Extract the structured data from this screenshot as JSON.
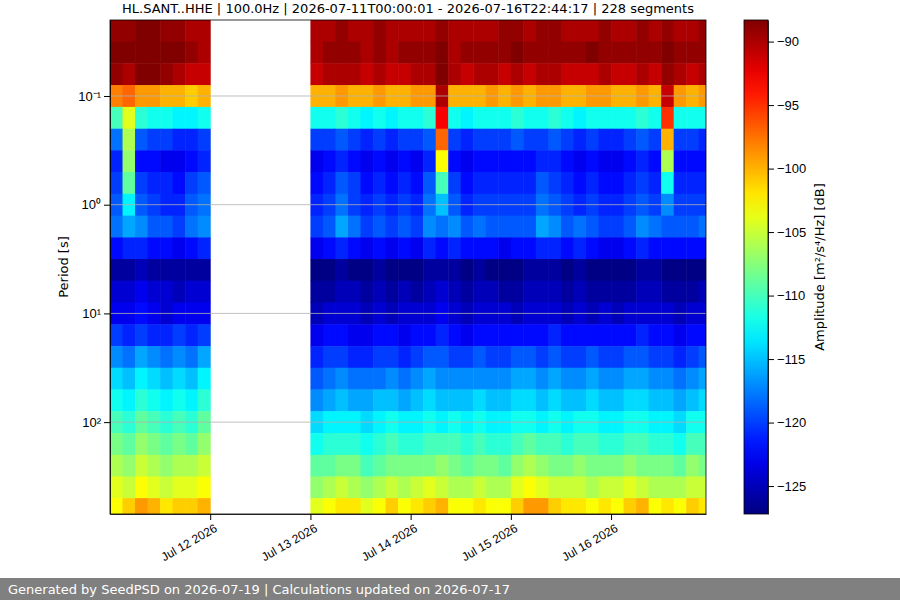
{
  "chart_data": {
    "type": "heatmap",
    "title": "HL.SANT..HHE | 100.0Hz | 2026-07-11T00:00:01 - 2026-07-16T22:44:17 | 228 segments",
    "y_label": "Period [s]",
    "footer": "Generated by SeedPSD on 2026-07-19 | Calculations updated on 2026-07-17",
    "log": "y",
    "grid": "y",
    "color": "jet",
    "xlim": [
      "2026-07-11T00:00:01",
      "2026-07-16T22:44:17"
    ],
    "ylim": [
      0.02,
      700
    ],
    "xticks": [
      {
        "value": "2026-07-12T00:00:00",
        "label": "Jul 12 2026"
      },
      {
        "value": "2026-07-13T00:00:00",
        "label": "Jul 13 2026"
      },
      {
        "value": "2026-07-14T00:00:00",
        "label": "Jul 14 2026"
      },
      {
        "value": "2026-07-15T00:00:00",
        "label": "Jul 15 2026"
      },
      {
        "value": "2026-07-16T00:00:00",
        "label": "Jul 16 2026"
      }
    ],
    "yticks": [
      {
        "value": 0.1,
        "label": "10⁻¹"
      },
      {
        "value": 1,
        "label": "10⁰"
      },
      {
        "value": 10,
        "label": "10¹"
      },
      {
        "value": 100,
        "label": "10²"
      }
    ],
    "colorbar": {
      "label": "Amplitude [m²/s⁴/Hz] [dB]",
      "range": [
        -127.2,
        -88.3
      ],
      "ticks": [
        {
          "value": -90,
          "label": "−90"
        },
        {
          "value": -95,
          "label": "−95"
        },
        {
          "value": -100,
          "label": "−100"
        },
        {
          "value": -105,
          "label": "−105"
        },
        {
          "value": -110,
          "label": "−110"
        },
        {
          "value": -115,
          "label": "−115"
        },
        {
          "value": -120,
          "label": "−120"
        },
        {
          "value": -125,
          "label": "−125"
        }
      ]
    },
    "x_edges": [
      "2026-07-11T00:00:00",
      "2026-07-11T03:00:00",
      "2026-07-11T06:00:00",
      "2026-07-11T09:00:00",
      "2026-07-11T12:00:00",
      "2026-07-11T15:00:00",
      "2026-07-11T18:00:00",
      "2026-07-11T21:00:00",
      "2026-07-12T00:00:00",
      "2026-07-12T03:00:00",
      "2026-07-12T06:00:00",
      "2026-07-12T09:00:00",
      "2026-07-12T12:00:00",
      "2026-07-12T15:00:00",
      "2026-07-12T18:00:00",
      "2026-07-12T21:00:00",
      "2026-07-13T00:00:00",
      "2026-07-13T03:00:00",
      "2026-07-13T06:00:00",
      "2026-07-13T09:00:00",
      "2026-07-13T12:00:00",
      "2026-07-13T15:00:00",
      "2026-07-13T18:00:00",
      "2026-07-13T21:00:00",
      "2026-07-14T00:00:00",
      "2026-07-14T03:00:00",
      "2026-07-14T06:00:00",
      "2026-07-14T09:00:00",
      "2026-07-14T12:00:00",
      "2026-07-14T15:00:00",
      "2026-07-14T18:00:00",
      "2026-07-14T21:00:00",
      "2026-07-15T00:00:00",
      "2026-07-15T03:00:00",
      "2026-07-15T06:00:00",
      "2026-07-15T09:00:00",
      "2026-07-15T12:00:00",
      "2026-07-15T15:00:00",
      "2026-07-15T18:00:00",
      "2026-07-15T21:00:00",
      "2026-07-16T00:00:00",
      "2026-07-16T03:00:00",
      "2026-07-16T06:00:00",
      "2026-07-16T09:00:00",
      "2026-07-16T12:00:00",
      "2026-07-16T15:00:00",
      "2026-07-16T18:00:00",
      "2026-07-16T21:00:00",
      "2026-07-16T22:44:17"
    ],
    "y_edges": [
      0.02,
      0.0316,
      0.05,
      0.0794,
      0.126,
      0.2,
      0.316,
      0.5,
      0.794,
      1.26,
      2,
      3.16,
      5,
      7.94,
      12.6,
      20,
      31.6,
      50,
      79.4,
      126,
      200,
      316,
      500,
      700
    ],
    "cells": [
      [
        -89,
        -89,
        -88,
        -88,
        -89,
        -89,
        -90,
        -90,
        null,
        null,
        null,
        null,
        null,
        null,
        null,
        null,
        -90,
        -90,
        -89,
        -90,
        -90,
        -89,
        -90,
        -90,
        -90,
        -90,
        -89,
        -90,
        -90,
        -90,
        -90,
        -89,
        -89,
        -90,
        -89,
        -89,
        -90,
        -90,
        -90,
        -89,
        -90,
        -90,
        -89,
        -90,
        -89,
        -90,
        -90,
        -89
      ],
      [
        -88,
        -88,
        -88,
        -87,
        -88,
        -88,
        -89,
        -90,
        null,
        null,
        null,
        null,
        null,
        null,
        null,
        null,
        -90,
        -89,
        -89,
        -89,
        -90,
        -89,
        -90,
        -89,
        -89,
        -89,
        -88,
        -90,
        -89,
        -89,
        -89,
        -89,
        -88,
        -89,
        -89,
        -89,
        -89,
        -89,
        -88,
        -89,
        -89,
        -89,
        -89,
        -89,
        -88,
        -89,
        -89,
        -89
      ],
      [
        -89,
        -90,
        -88,
        -88,
        -89,
        -90,
        -91,
        -91,
        null,
        null,
        null,
        null,
        null,
        null,
        null,
        null,
        -91,
        -90,
        -90,
        -90,
        -91,
        -90,
        -91,
        -91,
        -90,
        -90,
        -88,
        -90,
        -91,
        -90,
        -90,
        -91,
        -90,
        -91,
        -90,
        -90,
        -91,
        -91,
        -91,
        -90,
        -91,
        -91,
        -90,
        -91,
        -89,
        -90,
        -91,
        -90
      ],
      [
        -98,
        -97,
        -99,
        -99,
        -100,
        -100,
        -101,
        -100,
        null,
        null,
        null,
        null,
        null,
        null,
        null,
        null,
        -100,
        -100,
        -99,
        -100,
        -100,
        -99,
        -100,
        -100,
        -99,
        -99,
        -90,
        -100,
        -100,
        -100,
        -99,
        -100,
        -99,
        -100,
        -99,
        -99,
        -100,
        -100,
        -99,
        -99,
        -100,
        -100,
        -99,
        -100,
        -91,
        -99,
        -100,
        -99
      ],
      [
        -110,
        -104,
        -111,
        -112,
        -112,
        -113,
        -113,
        -112,
        null,
        null,
        null,
        null,
        null,
        null,
        null,
        null,
        -112,
        -112,
        -111,
        -112,
        -113,
        -112,
        -113,
        -112,
        -112,
        -111,
        -93,
        -112,
        -113,
        -112,
        -112,
        -112,
        -111,
        -112,
        -112,
        -111,
        -112,
        -113,
        -112,
        -112,
        -112,
        -112,
        -111,
        -112,
        -95,
        -112,
        -112,
        -112
      ],
      [
        -118,
        -106,
        -119,
        -120,
        -120,
        -121,
        -121,
        -120,
        null,
        null,
        null,
        null,
        null,
        null,
        null,
        null,
        -120,
        -120,
        -119,
        -120,
        -121,
        -120,
        -121,
        -120,
        -120,
        -119,
        -97,
        -120,
        -121,
        -120,
        -120,
        -120,
        -119,
        -120,
        -120,
        -119,
        -120,
        -121,
        -120,
        -121,
        -121,
        -120,
        -119,
        -120,
        -100,
        -120,
        -120,
        -121
      ],
      [
        -121,
        -107,
        -122,
        -122,
        -123,
        -123,
        -122,
        -121,
        null,
        null,
        null,
        null,
        null,
        null,
        null,
        null,
        -123,
        -122,
        -121,
        -122,
        -123,
        -122,
        -123,
        -122,
        -123,
        -121,
        -103,
        -122,
        -123,
        -122,
        -122,
        -122,
        -122,
        -122,
        -121,
        -121,
        -122,
        -123,
        -122,
        -123,
        -123,
        -122,
        -121,
        -122,
        -106,
        -122,
        -122,
        -122
      ],
      [
        -120,
        -109,
        -120,
        -121,
        -121,
        -122,
        -120,
        -119,
        null,
        null,
        null,
        null,
        null,
        null,
        null,
        null,
        -122,
        -121,
        -119,
        -120,
        -122,
        -121,
        -122,
        -121,
        -122,
        -119,
        -110,
        -120,
        -122,
        -121,
        -121,
        -121,
        -121,
        -121,
        -119,
        -120,
        -121,
        -122,
        -121,
        -122,
        -122,
        -121,
        -120,
        -121,
        -112,
        -121,
        -121,
        -121
      ],
      [
        -119,
        -113,
        -119,
        -120,
        -121,
        -121,
        -119,
        -118,
        null,
        null,
        null,
        null,
        null,
        null,
        null,
        null,
        -121,
        -120,
        -118,
        -120,
        -121,
        -120,
        -121,
        -120,
        -121,
        -118,
        -115,
        -119,
        -121,
        -120,
        -120,
        -120,
        -120,
        -120,
        -118,
        -119,
        -120,
        -121,
        -120,
        -121,
        -121,
        -120,
        -119,
        -120,
        -117,
        -120,
        -120,
        -120
      ],
      [
        -118,
        -116,
        -117,
        -119,
        -119,
        -120,
        -118,
        -117,
        null,
        null,
        null,
        null,
        null,
        null,
        null,
        null,
        -120,
        -119,
        -116,
        -118,
        -120,
        -119,
        -120,
        -119,
        -120,
        -117,
        -118,
        -117,
        -119,
        -118,
        -119,
        -119,
        -119,
        -119,
        -116,
        -117,
        -119,
        -118,
        -119,
        -120,
        -120,
        -119,
        -117,
        -118,
        -119,
        -119,
        -119,
        -118
      ],
      [
        -122,
        -121,
        -121,
        -122,
        -122,
        -123,
        -122,
        -121,
        null,
        null,
        null,
        null,
        null,
        null,
        null,
        null,
        -123,
        -122,
        -121,
        -122,
        -123,
        -122,
        -123,
        -122,
        -123,
        -121,
        -122,
        -121,
        -122,
        -122,
        -122,
        -123,
        -122,
        -122,
        -121,
        -121,
        -122,
        -121,
        -122,
        -123,
        -123,
        -122,
        -121,
        -122,
        -122,
        -122,
        -122,
        -122
      ],
      [
        -126,
        -126,
        -125,
        -126,
        -126,
        -126,
        -126,
        -126,
        null,
        null,
        null,
        null,
        null,
        null,
        null,
        null,
        -127,
        -127,
        -126,
        -127,
        -127,
        -126,
        -127,
        -127,
        -127,
        -126,
        -126,
        -126,
        -127,
        -126,
        -127,
        -127,
        -127,
        -126,
        -126,
        -126,
        -127,
        -126,
        -127,
        -127,
        -127,
        -127,
        -126,
        -126,
        -127,
        -127,
        -127,
        -127
      ],
      [
        -124,
        -124,
        -123,
        -124,
        -124,
        -125,
        -124,
        -124,
        null,
        null,
        null,
        null,
        null,
        null,
        null,
        null,
        -126,
        -126,
        -125,
        -125,
        -126,
        -125,
        -126,
        -125,
        -126,
        -125,
        -124,
        -125,
        -126,
        -125,
        -125,
        -126,
        -126,
        -125,
        -125,
        -125,
        -126,
        -125,
        -126,
        -126,
        -126,
        -126,
        -125,
        -125,
        -126,
        -126,
        -126,
        -125
      ],
      [
        -123,
        -123,
        -122,
        -123,
        -124,
        -123,
        -123,
        -123,
        null,
        null,
        null,
        null,
        null,
        null,
        null,
        null,
        -125,
        -124,
        -124,
        -124,
        -125,
        -124,
        -125,
        -124,
        -124,
        -124,
        -123,
        -124,
        -125,
        -124,
        -124,
        -124,
        -125,
        -124,
        -124,
        -124,
        -125,
        -124,
        -125,
        -124,
        -125,
        -124,
        -124,
        -124,
        -124,
        -125,
        -124,
        -124
      ],
      [
        -120,
        -121,
        -120,
        -121,
        -121,
        -120,
        -121,
        -120,
        null,
        null,
        null,
        null,
        null,
        null,
        null,
        null,
        -123,
        -122,
        -122,
        -123,
        -123,
        -122,
        -122,
        -123,
        -122,
        -122,
        -121,
        -122,
        -123,
        -122,
        -122,
        -122,
        -122,
        -122,
        -122,
        -121,
        -122,
        -122,
        -122,
        -122,
        -122,
        -122,
        -121,
        -122,
        -122,
        -123,
        -122,
        -122
      ],
      [
        -117,
        -118,
        -116,
        -117,
        -118,
        -117,
        -118,
        -116,
        null,
        null,
        null,
        null,
        null,
        null,
        null,
        null,
        -121,
        -120,
        -120,
        -121,
        -121,
        -120,
        -120,
        -121,
        -120,
        -119,
        -119,
        -120,
        -120,
        -119,
        -120,
        -120,
        -119,
        -119,
        -120,
        -119,
        -120,
        -120,
        -119,
        -120,
        -120,
        -119,
        -119,
        -120,
        -120,
        -121,
        -120,
        -119
      ],
      [
        -114,
        -115,
        -113,
        -114,
        -115,
        -114,
        -115,
        -113,
        null,
        null,
        null,
        null,
        null,
        null,
        null,
        null,
        -119,
        -118,
        -117,
        -118,
        -118,
        -118,
        -117,
        -118,
        -117,
        -116,
        -117,
        -117,
        -117,
        -117,
        -117,
        -117,
        -116,
        -116,
        -117,
        -116,
        -117,
        -117,
        -116,
        -117,
        -117,
        -116,
        -116,
        -117,
        -117,
        -118,
        -117,
        -116
      ],
      [
        -112,
        -113,
        -111,
        -112,
        -113,
        -112,
        -113,
        -111,
        null,
        null,
        null,
        null,
        null,
        null,
        null,
        null,
        -117,
        -116,
        -115,
        -116,
        -116,
        -115,
        -115,
        -116,
        -115,
        -114,
        -115,
        -115,
        -115,
        -114,
        -115,
        -115,
        -114,
        -114,
        -115,
        -114,
        -115,
        -115,
        -114,
        -115,
        -115,
        -114,
        -114,
        -115,
        -115,
        -116,
        -115,
        -114
      ],
      [
        -110,
        -111,
        -109,
        -110,
        -111,
        -110,
        -111,
        -109,
        null,
        null,
        null,
        null,
        null,
        null,
        null,
        null,
        -114,
        -113,
        -113,
        -113,
        -114,
        -113,
        -112,
        -113,
        -113,
        -112,
        -113,
        -112,
        -113,
        -112,
        -113,
        -113,
        -112,
        -112,
        -113,
        -112,
        -113,
        -112,
        -112,
        -113,
        -113,
        -112,
        -112,
        -113,
        -113,
        -114,
        -112,
        -112
      ],
      [
        -108,
        -109,
        -107,
        -108,
        -109,
        -108,
        -109,
        -107,
        null,
        null,
        null,
        null,
        null,
        null,
        null,
        null,
        -112,
        -111,
        -111,
        -111,
        -112,
        -111,
        -110,
        -111,
        -111,
        -110,
        -110,
        -110,
        -111,
        -110,
        -111,
        -111,
        -110,
        -109,
        -110,
        -110,
        -111,
        -110,
        -110,
        -111,
        -111,
        -110,
        -110,
        -111,
        -111,
        -112,
        -110,
        -110
      ],
      [
        -106,
        -107,
        -105,
        -106,
        -107,
        -106,
        -106,
        -105,
        null,
        null,
        null,
        null,
        null,
        null,
        null,
        null,
        -109,
        -109,
        -108,
        -108,
        -110,
        -109,
        -108,
        -108,
        -108,
        -108,
        -107,
        -108,
        -109,
        -108,
        -108,
        -109,
        -107,
        -106,
        -107,
        -108,
        -108,
        -107,
        -108,
        -108,
        -108,
        -107,
        -108,
        -108,
        -108,
        -109,
        -107,
        -108
      ],
      [
        -104,
        -105,
        -103,
        -104,
        -105,
        -104,
        -104,
        -103,
        null,
        null,
        null,
        null,
        null,
        null,
        null,
        null,
        -107,
        -106,
        -105,
        -106,
        -107,
        -106,
        -105,
        -106,
        -105,
        -104,
        -105,
        -106,
        -106,
        -105,
        -106,
        -106,
        -104,
        -103,
        -104,
        -105,
        -105,
        -105,
        -106,
        -105,
        -105,
        -104,
        -105,
        -106,
        -106,
        -106,
        -105,
        -105
      ],
      [
        -103,
        -101,
        -99,
        -100,
        -102,
        -101,
        -101,
        -100,
        null,
        null,
        null,
        null,
        null,
        null,
        null,
        null,
        -104,
        -103,
        -102,
        -102,
        -104,
        -103,
        -101,
        -103,
        -102,
        -101,
        -100,
        -103,
        -103,
        -102,
        -103,
        -103,
        -101,
        -99,
        -99,
        -101,
        -102,
        -102,
        -103,
        -102,
        -103,
        -101,
        -100,
        -103,
        -102,
        -103,
        -101,
        -102
      ]
    ]
  }
}
